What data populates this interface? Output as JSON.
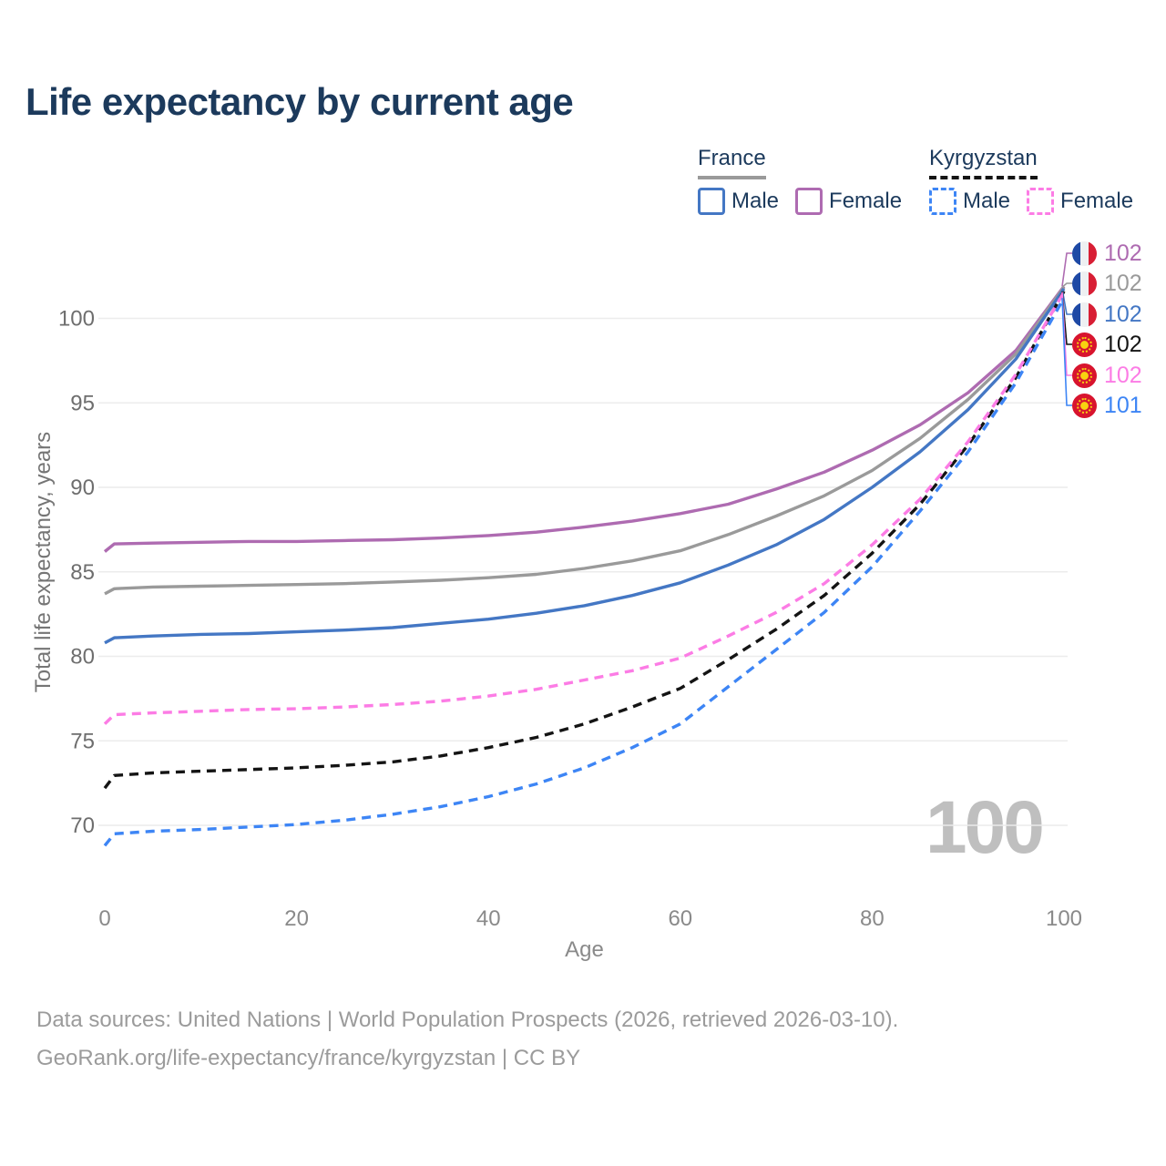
{
  "title": "Life expectancy by current age",
  "watermark": {
    "text": "100"
  },
  "footer": {
    "line1": "Data sources: United Nations | World Population Prospects (2026, retrieved 2026-03-10).",
    "line2": "GeoRank.org/life-expectancy/france/kyrgyzstan | CC BY"
  },
  "colors": {
    "france_male": "#4477C4",
    "france_female": "#AE6BB1",
    "france_total": "#9A9A9A",
    "kyrgyzstan_male": "#3D85F5",
    "kyrgyzstan_female": "#FC7CE5",
    "kyrgyzstan_total": "#141414",
    "title_text": "#1C3A5C",
    "y_tick_text": "#6E6E6E",
    "x_tick_text": "#8A8A8A",
    "grid": "#ECECEC",
    "watermark": "#BFBFBF",
    "footer_text": "#9B9B9B"
  },
  "legend": {
    "groups": [
      {
        "label": "France",
        "line_style": "solid",
        "items": [
          {
            "label": "Male",
            "key": "france_male"
          },
          {
            "label": "Female",
            "key": "france_female"
          }
        ]
      },
      {
        "label": "Kyrgyzstan",
        "line_style": "dashed",
        "items": [
          {
            "label": "Male",
            "key": "kyrgyzstan_male"
          },
          {
            "label": "Female",
            "key": "kyrgyzstan_female"
          }
        ]
      }
    ]
  },
  "end_labels": [
    {
      "series_key": "france_female",
      "flag": "france",
      "value": "102"
    },
    {
      "series_key": "france_total",
      "flag": "france",
      "value": "102"
    },
    {
      "series_key": "france_male",
      "flag": "france",
      "value": "102"
    },
    {
      "series_key": "kyrgyzstan_total",
      "flag": "kyrgyzstan",
      "value": "102"
    },
    {
      "series_key": "kyrgyzstan_female",
      "flag": "kyrgyzstan",
      "value": "102"
    },
    {
      "series_key": "kyrgyzstan_male",
      "flag": "kyrgyzstan",
      "value": "101"
    }
  ],
  "chart_data": {
    "type": "line",
    "title": "Life expectancy by current age",
    "xlabel": "Age",
    "ylabel": "Total life expectancy, years",
    "x_ticks": [
      0,
      20,
      40,
      60,
      80,
      100
    ],
    "y_ticks": [
      70,
      75,
      80,
      85,
      90,
      95,
      100
    ],
    "xlim": [
      0,
      100
    ],
    "ylim": [
      68,
      103
    ],
    "grid": "horizontal",
    "legend_position": "top-right",
    "x": [
      0,
      1,
      5,
      10,
      15,
      20,
      25,
      30,
      35,
      40,
      45,
      50,
      55,
      60,
      65,
      70,
      75,
      80,
      85,
      90,
      95,
      100
    ],
    "series": [
      {
        "name": "France — Female",
        "key": "france_female",
        "style": "solid",
        "values": [
          86.2,
          86.65,
          86.7,
          86.75,
          86.8,
          86.8,
          86.85,
          86.9,
          87.0,
          87.15,
          87.35,
          87.65,
          88.0,
          88.45,
          89.0,
          89.9,
          90.9,
          92.2,
          93.7,
          95.6,
          98.1,
          101.9
        ]
      },
      {
        "name": "France — Both sexes",
        "key": "france_total",
        "style": "solid",
        "values": [
          83.7,
          84.0,
          84.1,
          84.15,
          84.2,
          84.25,
          84.3,
          84.4,
          84.5,
          84.65,
          84.85,
          85.2,
          85.65,
          86.25,
          87.2,
          88.3,
          89.5,
          91.0,
          92.9,
          95.2,
          97.9,
          101.85
        ]
      },
      {
        "name": "France — Male",
        "key": "france_male",
        "style": "solid",
        "values": [
          80.8,
          81.1,
          81.2,
          81.3,
          81.35,
          81.45,
          81.55,
          81.7,
          81.95,
          82.2,
          82.55,
          83.0,
          83.6,
          84.35,
          85.4,
          86.6,
          88.1,
          90.0,
          92.1,
          94.6,
          97.6,
          101.75
        ]
      },
      {
        "name": "Kyrgyzstan — Both sexes",
        "key": "kyrgyzstan_total",
        "style": "dashed",
        "values": [
          72.2,
          72.95,
          73.1,
          73.2,
          73.3,
          73.4,
          73.55,
          73.75,
          74.1,
          74.6,
          75.2,
          76.0,
          77.0,
          78.1,
          79.8,
          81.6,
          83.6,
          86.1,
          89.0,
          92.5,
          96.5,
          101.6
        ]
      },
      {
        "name": "Kyrgyzstan — Female",
        "key": "kyrgyzstan_female",
        "style": "dashed",
        "values": [
          76.0,
          76.55,
          76.65,
          76.75,
          76.85,
          76.9,
          77.0,
          77.15,
          77.35,
          77.65,
          78.05,
          78.6,
          79.15,
          79.9,
          81.2,
          82.6,
          84.3,
          86.6,
          89.3,
          92.7,
          96.7,
          101.55
        ]
      },
      {
        "name": "Kyrgyzstan — Male",
        "key": "kyrgyzstan_male",
        "style": "dashed",
        "values": [
          68.8,
          69.5,
          69.65,
          69.75,
          69.9,
          70.05,
          70.3,
          70.65,
          71.1,
          71.7,
          72.45,
          73.4,
          74.6,
          76.0,
          78.2,
          80.4,
          82.6,
          85.3,
          88.6,
          92.1,
          96.2,
          101.2
        ]
      }
    ]
  }
}
